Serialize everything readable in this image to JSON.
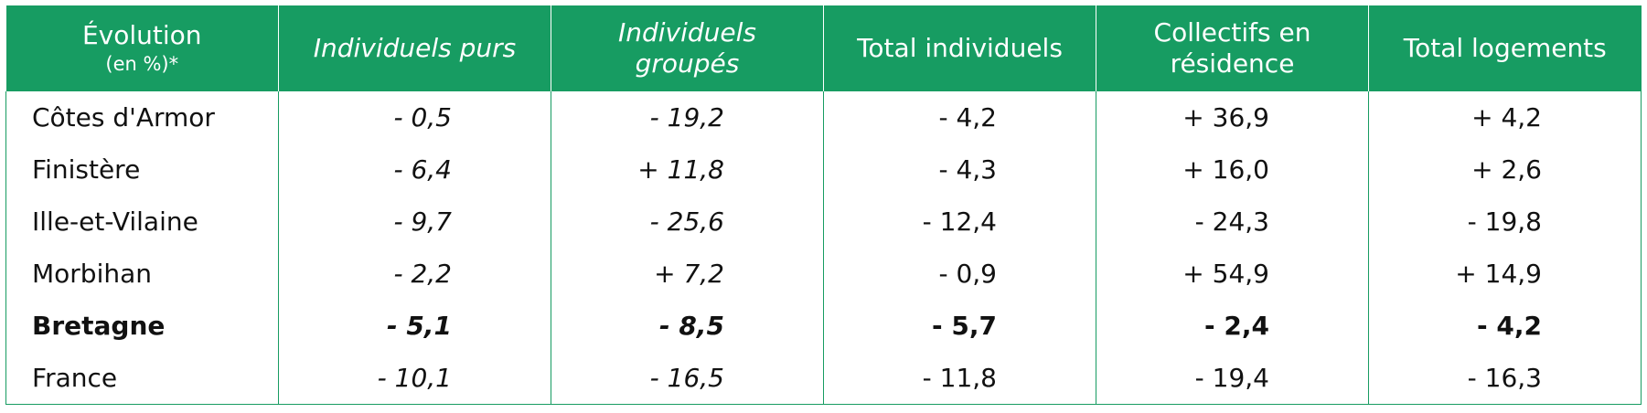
{
  "table": {
    "header": {
      "first": {
        "title": "Évolution",
        "unit": "(en %)*"
      },
      "columns": [
        {
          "text": "Individuels purs",
          "italic": true
        },
        {
          "text": "Individuels groupés",
          "italic": true
        },
        {
          "text": "Total individuels",
          "italic": false
        },
        {
          "text": "Collectifs en résidence",
          "italic": false
        },
        {
          "text": "Total logements",
          "italic": false
        }
      ]
    },
    "rows": [
      {
        "bold": false,
        "cells": [
          "Côtes d'Armor",
          "- 0,5",
          "- 19,2",
          "- 4,2",
          "+ 36,9",
          "+ 4,2"
        ]
      },
      {
        "bold": false,
        "cells": [
          "Finistère",
          "- 6,4",
          "+ 11,8",
          "- 4,3",
          "+ 16,0",
          "+ 2,6"
        ]
      },
      {
        "bold": false,
        "cells": [
          "Ille-et-Vilaine",
          "- 9,7",
          "- 25,6",
          "- 12,4",
          "- 24,3",
          "- 19,8"
        ]
      },
      {
        "bold": false,
        "cells": [
          "Morbihan",
          "- 2,2",
          "+ 7,2",
          "- 0,9",
          "+ 54,9",
          "+ 14,9"
        ]
      },
      {
        "bold": true,
        "cells": [
          "Bretagne",
          "- 5,1",
          "- 8,5",
          "- 5,7",
          "- 2,4",
          "- 4,2"
        ]
      },
      {
        "bold": false,
        "cells": [
          "France",
          "- 10,1",
          "- 16,5",
          "- 11,8",
          "- 19,4",
          "- 16,3"
        ]
      }
    ]
  }
}
